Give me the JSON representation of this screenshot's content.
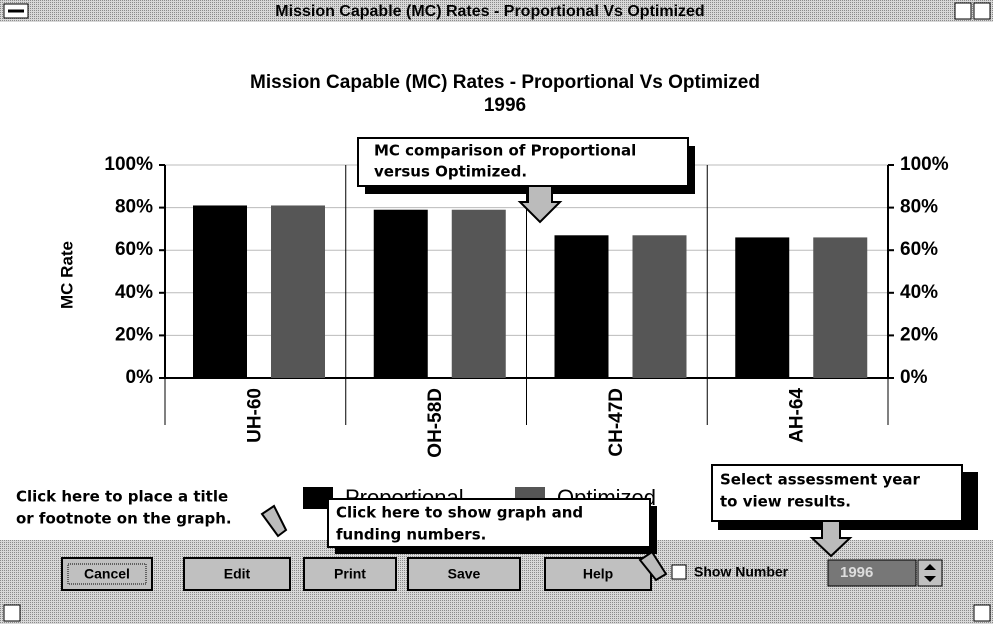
{
  "window": {
    "title": "Mission Capable (MC) Rates - Proportional Vs Optimized"
  },
  "chart_data": {
    "type": "bar",
    "title": "Mission Capable (MC) Rates - Proportional Vs Optimized",
    "subtitle": "1996",
    "y_label": "MC Rate",
    "categories": [
      "UH-60",
      "OH-58D",
      "CH-47D",
      "AH-64"
    ],
    "series": [
      {
        "name": "Proportional",
        "color": "#000000",
        "values": [
          81,
          79,
          67,
          66
        ]
      },
      {
        "name": "Optimized",
        "color": "#565656",
        "values": [
          81,
          79,
          67,
          66
        ]
      }
    ],
    "ylim": [
      0,
      100
    ],
    "yticks": [
      {
        "value": 0,
        "label": "0%"
      },
      {
        "value": 20,
        "label": "20%"
      },
      {
        "value": 40,
        "label": "40%"
      },
      {
        "value": 60,
        "label": "60%"
      },
      {
        "value": 80,
        "label": "80%"
      },
      {
        "value": 100,
        "label": "100%"
      }
    ],
    "y2lim": [
      0,
      100
    ],
    "y2ticks": [
      {
        "value": 0,
        "label": "0%"
      },
      {
        "value": 20,
        "label": "20%"
      },
      {
        "value": 40,
        "label": "40%"
      },
      {
        "value": 60,
        "label": "60%"
      },
      {
        "value": 80,
        "label": "80%"
      },
      {
        "value": 100,
        "label": "100%"
      }
    ],
    "grid": true
  },
  "callouts": [
    {
      "lines": [
        "MC comparison of Proportional",
        "versus Optimized."
      ]
    },
    {
      "lines": [
        "Click here to place a title",
        "or footnote on the graph."
      ]
    },
    {
      "lines": [
        "Click here to show graph and",
        "funding numbers."
      ]
    },
    {
      "lines": [
        "Select assessment year",
        "to view results."
      ]
    }
  ],
  "buttons": [
    "Cancel",
    "Edit",
    "Print",
    "Save",
    "Help"
  ],
  "checkbox": "Show Number",
  "year": "1996"
}
